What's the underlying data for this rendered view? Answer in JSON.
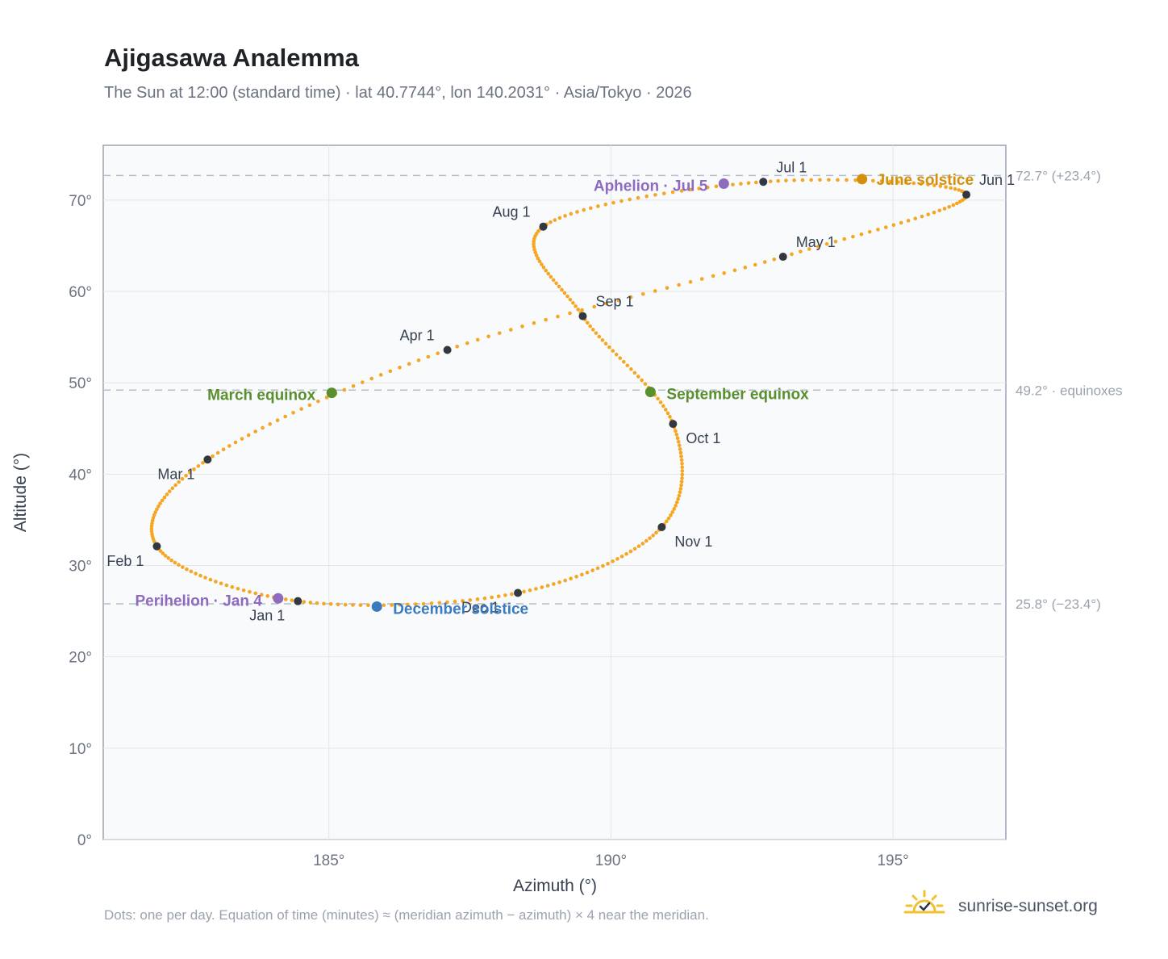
{
  "header": {
    "title": "Ajigasawa Analemma",
    "subtitle": "The Sun at 12:00 (standard time) · lat 40.7744°, lon 140.2031° · Asia/Tokyo · 2026"
  },
  "footer": {
    "note": "Dots: one per day. Equation of time (minutes) ≈ (meridian azimuth − azimuth) × 4 near the meridian.",
    "brand": "sunrise-sunset.org",
    "brand_icon": "sun-check-icon"
  },
  "chart_data": {
    "type": "scatter",
    "xlabel": "Azimuth (°)",
    "ylabel": "Altitude (°)",
    "xlim": [
      181,
      197
    ],
    "ylim": [
      0,
      76
    ],
    "x_ticks": [
      185,
      190,
      195
    ],
    "x_tick_labels": [
      "185°",
      "190°",
      "195°"
    ],
    "y_ticks": [
      0,
      10,
      20,
      30,
      40,
      50,
      60,
      70
    ],
    "y_tick_labels": [
      "0°",
      "10°",
      "20°",
      "30°",
      "40°",
      "50°",
      "60°",
      "70°"
    ],
    "grid": true,
    "colors": {
      "curve": "#f5a623",
      "month_marker": "#333840",
      "solstice_june": "#d4900a",
      "solstice_december": "#3a7abf",
      "equinox": "#5a8f2e",
      "apsis": "#8e6bbf",
      "reference_line": "#b8bec8",
      "plot_background": "#f8fafc",
      "plot_border": "#9aa3b1"
    },
    "reference_lines": [
      {
        "y": 72.7,
        "label": "72.7° (+23.4°)"
      },
      {
        "y": 49.2,
        "label": "49.2° · equinoxes"
      },
      {
        "y": 25.8,
        "label": "25.8° (−23.4°)"
      }
    ],
    "month_markers": [
      {
        "label": "Jan 1",
        "az": 184.45,
        "alt": 26.1
      },
      {
        "label": "Feb 1",
        "az": 181.95,
        "alt": 32.1
      },
      {
        "label": "Mar 1",
        "az": 182.85,
        "alt": 41.6
      },
      {
        "label": "Apr 1",
        "az": 187.1,
        "alt": 53.6
      },
      {
        "label": "May 1",
        "az": 193.05,
        "alt": 63.8
      },
      {
        "label": "Jun 1",
        "az": 196.3,
        "alt": 70.6
      },
      {
        "label": "Jul 1",
        "az": 192.7,
        "alt": 72.0
      },
      {
        "label": "Aug 1",
        "az": 188.8,
        "alt": 67.1
      },
      {
        "label": "Sep 1",
        "az": 189.5,
        "alt": 57.3
      },
      {
        "label": "Oct 1",
        "az": 191.1,
        "alt": 45.5
      },
      {
        "label": "Nov 1",
        "az": 190.9,
        "alt": 34.2
      },
      {
        "label": "Dec 1",
        "az": 188.35,
        "alt": 27.0
      }
    ],
    "events": [
      {
        "label": "June solstice",
        "az": 194.45,
        "alt": 72.3,
        "color": "#d4900a"
      },
      {
        "label": "December solstice",
        "az": 185.85,
        "alt": 25.5,
        "color": "#3a7abf"
      },
      {
        "label": "March equinox",
        "az": 185.05,
        "alt": 48.9,
        "color": "#5a8f2e"
      },
      {
        "label": "September equinox",
        "az": 190.7,
        "alt": 49.0,
        "color": "#5a8f2e"
      },
      {
        "label": "Aphelion · Jul 5",
        "az": 192.0,
        "alt": 71.8,
        "color": "#8e6bbf"
      },
      {
        "label": "Perihelion · Jan 4",
        "az": 184.1,
        "alt": 26.4,
        "color": "#8e6bbf"
      }
    ]
  }
}
